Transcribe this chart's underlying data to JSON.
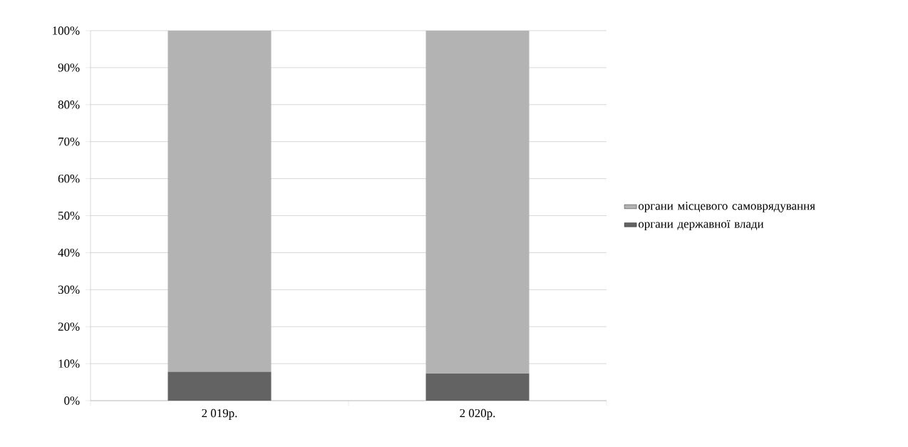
{
  "chart_data": {
    "type": "bar",
    "stacked": true,
    "categories": [
      "2 019р.",
      "2 020р."
    ],
    "series": [
      {
        "name": "органи державної влади",
        "color": "#636363",
        "values": [
          7.8,
          7.3
        ]
      },
      {
        "name": "органи місцевого самоврядування",
        "color": "#b3b3b3",
        "values": [
          92.2,
          92.7
        ]
      }
    ],
    "ylim": [
      0,
      100
    ],
    "yticks": [
      {
        "value": 0,
        "label": "0%"
      },
      {
        "value": 10,
        "label": "10%"
      },
      {
        "value": 20,
        "label": "20%"
      },
      {
        "value": 30,
        "label": "30%"
      },
      {
        "value": 40,
        "label": "40%"
      },
      {
        "value": 50,
        "label": "50%"
      },
      {
        "value": 60,
        "label": "60%"
      },
      {
        "value": 70,
        "label": "70%"
      },
      {
        "value": 80,
        "label": "80%"
      },
      {
        "value": 90,
        "label": "90%"
      },
      {
        "value": 100,
        "label": "100%"
      }
    ],
    "grid": "y",
    "legend": "right"
  }
}
